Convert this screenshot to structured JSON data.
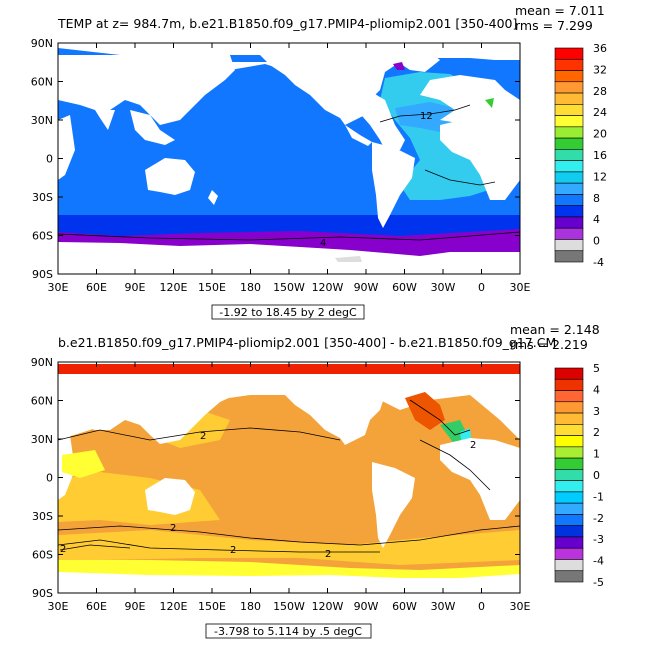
{
  "panels": [
    {
      "title": "TEMP at z= 984.7m, b.e21.B1850.f09_g17.PMIP4-pliomip2.001 [350-400]",
      "mean_text": "mean = 7.011",
      "rms_text": "rms = 7.299",
      "range_text": "-1.92 to 18.45 by 2 degC",
      "colorbar_labels": [
        "36",
        "32",
        "28",
        "24",
        "20",
        "16",
        "12",
        "8",
        "4",
        "0",
        "-4"
      ],
      "colorbar_colors": [
        "#ff0000",
        "#ff3300",
        "#ff6600",
        "#ff9933",
        "#ffbb33",
        "#ffdd33",
        "#ffff33",
        "#99ee33",
        "#33cc33",
        "#33ddaa",
        "#33eeee",
        "#11ccee",
        "#33aaff",
        "#1177ff",
        "#0033ee",
        "#6600cc",
        "#aa33dd",
        "#dddddd",
        "#777777"
      ],
      "contour_labels": [
        "12",
        "4"
      ]
    },
    {
      "title": "b.e21.B1850.f09_g17.PMIP4-pliomip2.001 [350-400] - b.e21.B1850.f09_g17.CM",
      "mean_text": "mean = 2.148",
      "rms_text": "rms = 2.219",
      "range_text": "-3.798 to 5.114 by .5 degC",
      "colorbar_labels": [
        "5",
        "4",
        "3",
        "2",
        "1",
        "0",
        "-1",
        "-2",
        "-3",
        "-4",
        "-5"
      ],
      "colorbar_colors": [
        "#dd0000",
        "#ee3300",
        "#ff6633",
        "#ff9933",
        "#ffbb33",
        "#ffdd33",
        "#ffff00",
        "#aaee33",
        "#33cc33",
        "#33ddaa",
        "#33eeee",
        "#00ccff",
        "#33aaff",
        "#1177ff",
        "#0033dd",
        "#6600cc",
        "#bb33dd",
        "#dddddd",
        "#777777"
      ],
      "contour_labels": [
        "2",
        "2",
        "2",
        "2",
        "2",
        "2"
      ]
    }
  ],
  "x_tick_labels": [
    "30E",
    "60E",
    "90E",
    "120E",
    "150E",
    "180",
    "150W",
    "120W",
    "90W",
    "60W",
    "30W",
    "0",
    "30E"
  ],
  "y_tick_labels": [
    "90N",
    "60N",
    "30N",
    "0",
    "30S",
    "60S",
    "90S"
  ],
  "colors": {
    "p1_deep_blue": "#0033ee",
    "p1_mid_blue": "#1177ff",
    "p1_light_blue": "#33aaff",
    "p1_cyan": "#33ccee",
    "p1_purple": "#8800cc",
    "p2_orange": "#f4a23a",
    "p2_light_orange": "#ffcc33",
    "p2_yellow": "#ffff33",
    "p2_red": "#ee2200"
  }
}
